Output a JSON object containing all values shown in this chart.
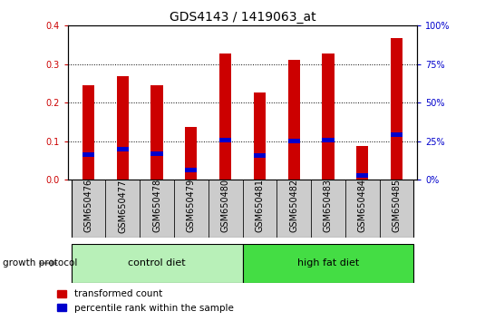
{
  "title": "GDS4143 / 1419063_at",
  "samples": [
    "GSM650476",
    "GSM650477",
    "GSM650478",
    "GSM650479",
    "GSM650480",
    "GSM650481",
    "GSM650482",
    "GSM650483",
    "GSM650484",
    "GSM650485"
  ],
  "transformed_count": [
    0.245,
    0.268,
    0.245,
    0.138,
    0.328,
    0.226,
    0.312,
    0.328,
    0.088,
    0.368
  ],
  "percentile_rank": [
    0.065,
    0.08,
    0.068,
    0.025,
    0.104,
    0.062,
    0.1,
    0.104,
    0.012,
    0.118
  ],
  "groups": [
    {
      "label": "control diet",
      "start": 0,
      "end": 5,
      "color": "#B8F0B8"
    },
    {
      "label": "high fat diet",
      "start": 5,
      "end": 10,
      "color": "#44DD44"
    }
  ],
  "group_label": "growth protocol",
  "ylim_left": [
    0,
    0.4
  ],
  "ylim_right": [
    0,
    100
  ],
  "yticks_left": [
    0,
    0.1,
    0.2,
    0.3,
    0.4
  ],
  "yticks_right": [
    0,
    25,
    50,
    75,
    100
  ],
  "bar_color_red": "#CC0000",
  "bar_color_blue": "#0000CC",
  "background_plot": "#FFFFFF",
  "background_sample": "#CCCCCC",
  "bar_width": 0.35,
  "blue_bar_width": 0.35,
  "blue_bar_height": 0.012,
  "title_fontsize": 10,
  "tick_fontsize": 7,
  "label_fontsize": 7.5,
  "group_fontsize": 8
}
